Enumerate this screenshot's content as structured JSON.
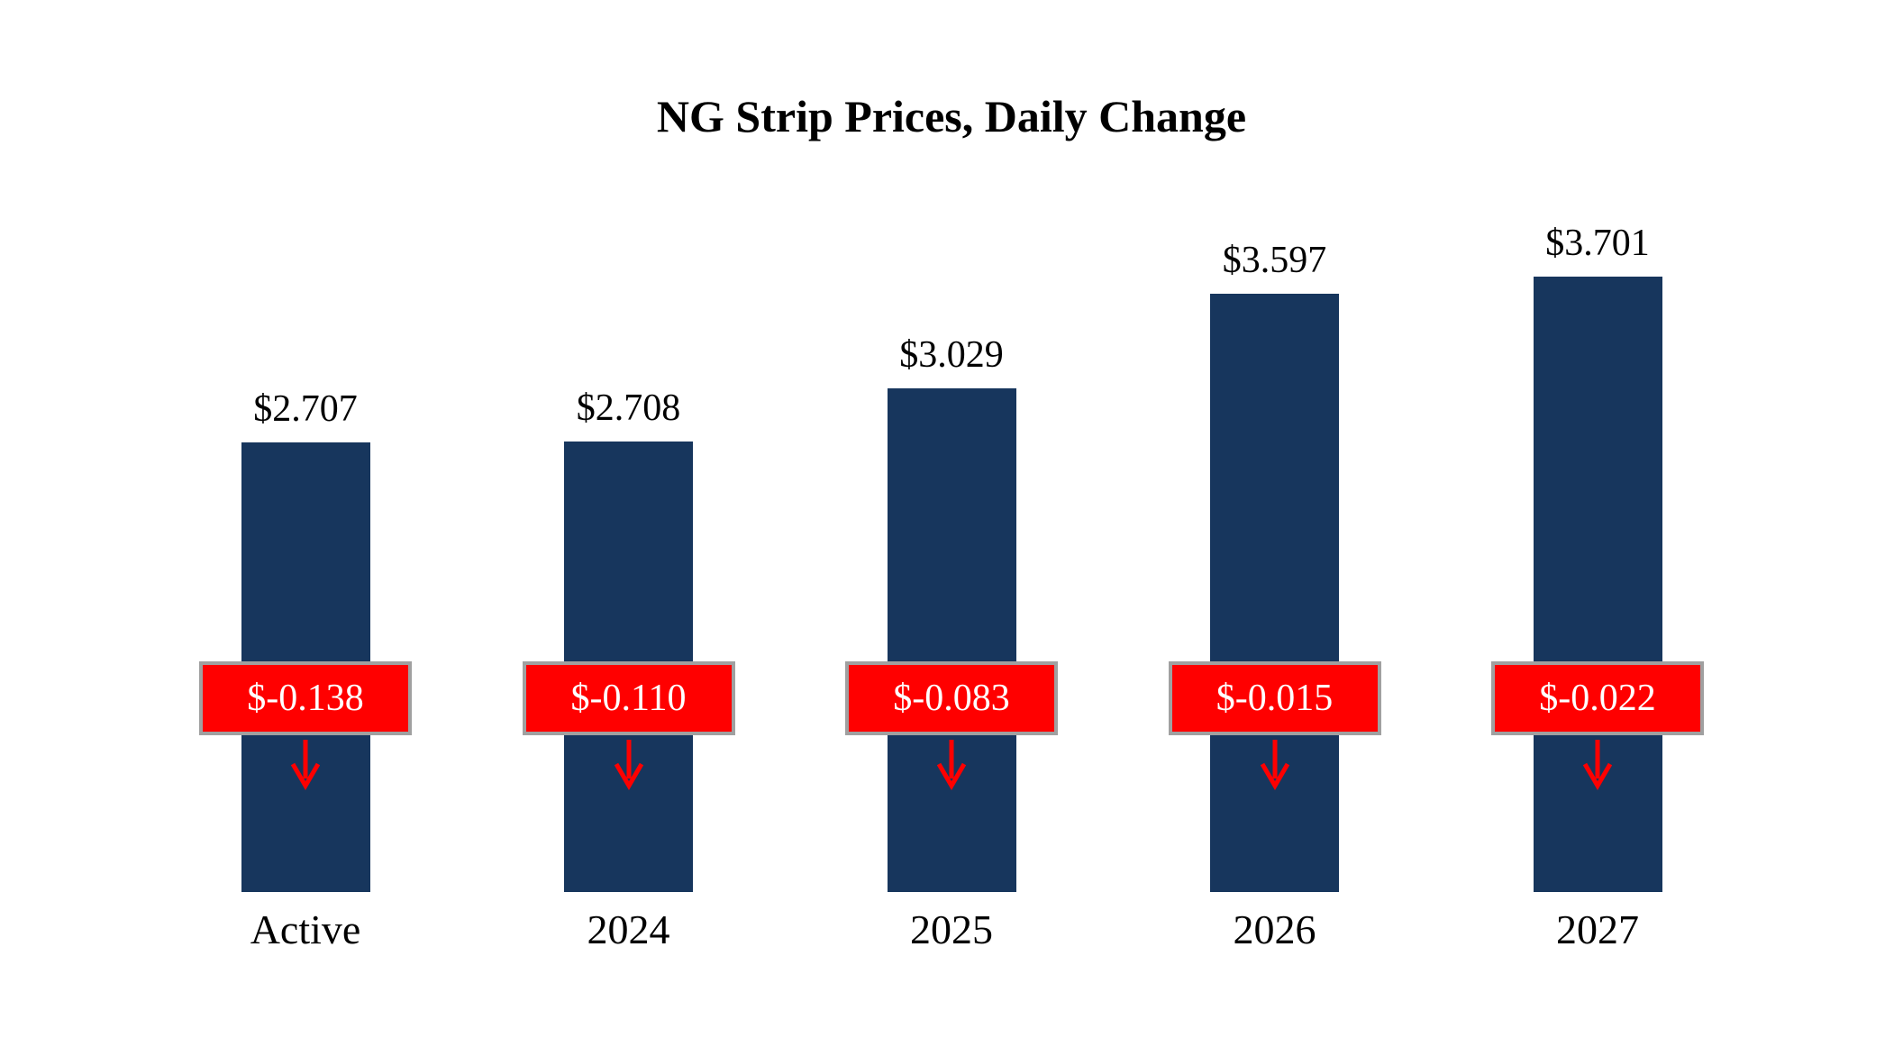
{
  "title": "NG Strip Prices, Daily Change",
  "colors": {
    "bar": "#17365D",
    "change_badge_bg": "#FF0000",
    "change_badge_text": "#FFFFFF",
    "change_badge_border": "#A0A0A0",
    "arrow": "#FF0000",
    "text": "#000000",
    "background": "#FFFFFF"
  },
  "chart_data": {
    "type": "bar",
    "title": "NG Strip Prices, Daily Change",
    "categories": [
      "Active",
      "2024",
      "2025",
      "2026",
      "2027"
    ],
    "series": [
      {
        "name": "Strip Price",
        "values": [
          2.707,
          2.708,
          3.029,
          3.597,
          3.701
        ],
        "labels": [
          "$2.707",
          "$2.708",
          "$3.029",
          "$3.597",
          "$3.701"
        ]
      },
      {
        "name": "Daily Change",
        "values": [
          -0.138,
          -0.11,
          -0.083,
          -0.015,
          -0.022
        ],
        "labels": [
          "$-0.138",
          "$-0.110",
          "$-0.083",
          "$-0.015",
          "$-0.022"
        ]
      }
    ],
    "xlabel": "",
    "ylabel": "",
    "ylim": [
      0,
      4
    ],
    "grid": false,
    "legend": "none",
    "annotations": "red badges with daily change values and red down arrows overlaid on each bar"
  }
}
